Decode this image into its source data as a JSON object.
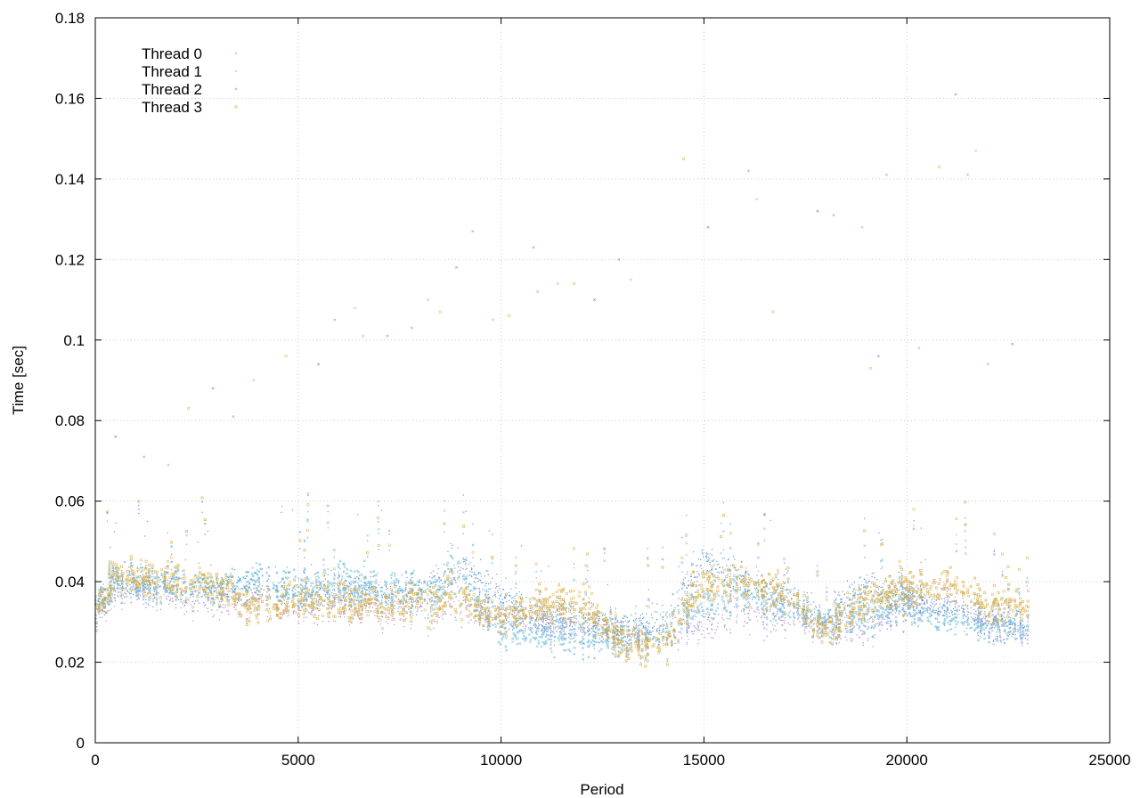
{
  "chart_data": {
    "type": "scatter",
    "title": "",
    "xlabel": "Period",
    "ylabel": "Time [sec]",
    "xlim": [
      0,
      25000
    ],
    "ylim": [
      0,
      0.18
    ],
    "x_ticks": [
      "0",
      "5000",
      "10000",
      "15000",
      "20000",
      "25000"
    ],
    "y_ticks": [
      "0",
      "0.02",
      "0.04",
      "0.06",
      "0.08",
      "0.1",
      "0.12",
      "0.14",
      "0.16",
      "0.18"
    ],
    "grid": true,
    "legend_position": "top-left",
    "x_extent": [
      0,
      23000
    ],
    "series": [
      {
        "name": "Thread 0",
        "color": "#2e7bbf",
        "marker": "dot",
        "profile": [
          [
            0,
            0.033
          ],
          [
            500,
            0.041
          ],
          [
            1000,
            0.04
          ],
          [
            2000,
            0.039
          ],
          [
            3000,
            0.038
          ],
          [
            4000,
            0.04
          ],
          [
            5000,
            0.038
          ],
          [
            6000,
            0.038
          ],
          [
            7000,
            0.037
          ],
          [
            8000,
            0.037
          ],
          [
            9000,
            0.044
          ],
          [
            10000,
            0.036
          ],
          [
            11000,
            0.031
          ],
          [
            12000,
            0.03
          ],
          [
            13000,
            0.028
          ],
          [
            14000,
            0.03
          ],
          [
            15000,
            0.045
          ],
          [
            16000,
            0.04
          ],
          [
            17000,
            0.036
          ],
          [
            18000,
            0.031
          ],
          [
            19000,
            0.038
          ],
          [
            20000,
            0.036
          ],
          [
            21000,
            0.033
          ],
          [
            22000,
            0.03
          ],
          [
            23000,
            0.029
          ]
        ]
      },
      {
        "name": "Thread 1",
        "color": "#9b6fc8",
        "marker": "dot",
        "profile": [
          [
            0,
            0.032
          ],
          [
            500,
            0.038
          ],
          [
            1000,
            0.038
          ],
          [
            2000,
            0.037
          ],
          [
            3000,
            0.035
          ],
          [
            4000,
            0.035
          ],
          [
            5000,
            0.034
          ],
          [
            6000,
            0.034
          ],
          [
            7000,
            0.033
          ],
          [
            8000,
            0.033
          ],
          [
            9000,
            0.034
          ],
          [
            10000,
            0.031
          ],
          [
            11000,
            0.03
          ],
          [
            12000,
            0.029
          ],
          [
            13000,
            0.027
          ],
          [
            14000,
            0.027
          ],
          [
            15000,
            0.03
          ],
          [
            16000,
            0.032
          ],
          [
            17000,
            0.031
          ],
          [
            18000,
            0.029
          ],
          [
            19000,
            0.028
          ],
          [
            20000,
            0.034
          ],
          [
            21000,
            0.036
          ],
          [
            22000,
            0.03
          ],
          [
            23000,
            0.027
          ]
        ]
      },
      {
        "name": "Thread 2",
        "color": "#68b8d6",
        "marker": "x",
        "profile": [
          [
            0,
            0.034
          ],
          [
            500,
            0.04
          ],
          [
            1000,
            0.039
          ],
          [
            2000,
            0.039
          ],
          [
            3000,
            0.038
          ],
          [
            4000,
            0.04
          ],
          [
            5000,
            0.038
          ],
          [
            6000,
            0.04
          ],
          [
            7000,
            0.038
          ],
          [
            8000,
            0.037
          ],
          [
            9000,
            0.04
          ],
          [
            10000,
            0.028
          ],
          [
            11000,
            0.027
          ],
          [
            12000,
            0.026
          ],
          [
            13000,
            0.026
          ],
          [
            14000,
            0.027
          ],
          [
            15000,
            0.035
          ],
          [
            16000,
            0.036
          ],
          [
            17000,
            0.033
          ],
          [
            18000,
            0.03
          ],
          [
            19000,
            0.031
          ],
          [
            20000,
            0.034
          ],
          [
            21000,
            0.031
          ],
          [
            22000,
            0.029
          ],
          [
            23000,
            0.028
          ]
        ]
      },
      {
        "name": "Thread 3",
        "color": "#d4a93a",
        "marker": "square",
        "profile": [
          [
            0,
            0.032
          ],
          [
            500,
            0.042
          ],
          [
            1000,
            0.041
          ],
          [
            2000,
            0.04
          ],
          [
            3000,
            0.039
          ],
          [
            4000,
            0.033
          ],
          [
            5000,
            0.036
          ],
          [
            6000,
            0.035
          ],
          [
            7000,
            0.034
          ],
          [
            8000,
            0.035
          ],
          [
            9000,
            0.036
          ],
          [
            10000,
            0.031
          ],
          [
            11000,
            0.034
          ],
          [
            12000,
            0.034
          ],
          [
            13000,
            0.025
          ],
          [
            14000,
            0.025
          ],
          [
            15000,
            0.04
          ],
          [
            16000,
            0.039
          ],
          [
            17000,
            0.037
          ],
          [
            18000,
            0.028
          ],
          [
            19000,
            0.035
          ],
          [
            20000,
            0.038
          ],
          [
            21000,
            0.04
          ],
          [
            22000,
            0.034
          ],
          [
            23000,
            0.034
          ]
        ]
      }
    ],
    "outliers": [
      [
        500,
        0.076
      ],
      [
        1200,
        0.071
      ],
      [
        1800,
        0.069
      ],
      [
        2300,
        0.083
      ],
      [
        2900,
        0.088
      ],
      [
        3400,
        0.081
      ],
      [
        3900,
        0.09
      ],
      [
        4700,
        0.096
      ],
      [
        5500,
        0.094
      ],
      [
        5900,
        0.105
      ],
      [
        6400,
        0.108
      ],
      [
        6600,
        0.101
      ],
      [
        7200,
        0.101
      ],
      [
        7800,
        0.103
      ],
      [
        8200,
        0.11
      ],
      [
        8500,
        0.107
      ],
      [
        8900,
        0.118
      ],
      [
        9300,
        0.127
      ],
      [
        9800,
        0.105
      ],
      [
        10200,
        0.106
      ],
      [
        10800,
        0.123
      ],
      [
        10900,
        0.112
      ],
      [
        11400,
        0.114
      ],
      [
        11800,
        0.114
      ],
      [
        12300,
        0.11
      ],
      [
        12900,
        0.12
      ],
      [
        13200,
        0.115
      ],
      [
        14500,
        0.145
      ],
      [
        15100,
        0.128
      ],
      [
        16100,
        0.142
      ],
      [
        16300,
        0.135
      ],
      [
        16700,
        0.107
      ],
      [
        17800,
        0.132
      ],
      [
        18200,
        0.131
      ],
      [
        18900,
        0.128
      ],
      [
        19100,
        0.093
      ],
      [
        19300,
        0.096
      ],
      [
        19500,
        0.141
      ],
      [
        20300,
        0.098
      ],
      [
        20800,
        0.143
      ],
      [
        21200,
        0.161
      ],
      [
        21500,
        0.141
      ],
      [
        21700,
        0.147
      ],
      [
        22000,
        0.094
      ],
      [
        22600,
        0.099
      ]
    ]
  }
}
